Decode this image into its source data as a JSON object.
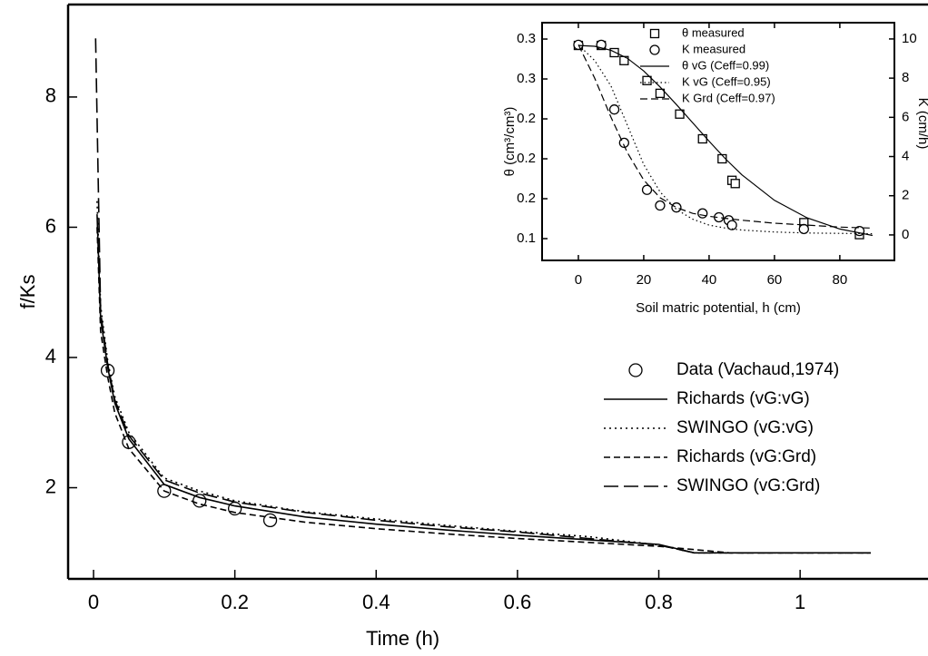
{
  "chart_data": [
    {
      "type": "line",
      "xlabel": "Time (h)",
      "ylabel": "f/Ks",
      "xlim": [
        -0.036,
        1.181
      ],
      "ylim": [
        0.6,
        9.42
      ],
      "xticks": [
        0,
        0.2,
        0.4,
        0.6,
        0.8,
        1
      ],
      "yticks": [
        2,
        4,
        6,
        8
      ],
      "legend": "lower right",
      "series": [
        {
          "name": "Data (Vachaud,1974)",
          "color": "#000000",
          "marker": "circle",
          "x": [
            0.02,
            0.05,
            0.1,
            0.15,
            0.2,
            0.25
          ],
          "values": [
            3.8,
            2.7,
            1.95,
            1.8,
            1.68,
            1.5
          ]
        },
        {
          "name": "Richards (vG:vG)",
          "color": "#000000",
          "style": "solid",
          "x": [
            0.005,
            0.01,
            0.02,
            0.03,
            0.05,
            0.1,
            0.15,
            0.2,
            0.3,
            0.4,
            0.5,
            0.6,
            0.7,
            0.8,
            0.85,
            0.9,
            1.0,
            1.1
          ],
          "values": [
            6.2,
            4.6,
            3.85,
            3.3,
            2.75,
            2.05,
            1.85,
            1.72,
            1.55,
            1.44,
            1.35,
            1.27,
            1.2,
            1.13,
            1.0,
            1.0,
            1.0,
            1.0
          ]
        },
        {
          "name": "SWINGO (vG:vG)",
          "color": "#000000",
          "style": "dotted",
          "x": [
            0.005,
            0.01,
            0.02,
            0.03,
            0.05,
            0.1,
            0.15,
            0.2,
            0.3,
            0.4,
            0.5,
            0.6,
            0.7,
            0.8,
            0.85,
            0.9,
            1.0,
            1.1
          ],
          "values": [
            6.4,
            4.8,
            3.95,
            3.4,
            2.85,
            2.15,
            1.95,
            1.8,
            1.63,
            1.52,
            1.42,
            1.33,
            1.25,
            1.12,
            1.0,
            1.0,
            1.0,
            1.0
          ]
        },
        {
          "name": "Richards (vG:Grd)",
          "color": "#000000",
          "style": "dashed",
          "x": [
            0.005,
            0.01,
            0.02,
            0.03,
            0.05,
            0.1,
            0.15,
            0.2,
            0.3,
            0.4,
            0.5,
            0.6,
            0.7,
            0.8,
            0.85,
            0.9,
            1.0,
            1.1
          ],
          "values": [
            6.0,
            4.4,
            3.7,
            3.15,
            2.6,
            1.95,
            1.75,
            1.62,
            1.47,
            1.37,
            1.29,
            1.22,
            1.16,
            1.1,
            1.05,
            1.0,
            1.0,
            1.0
          ]
        },
        {
          "name": "SWINGO (vG:Grd)",
          "color": "#000000",
          "style": "longdash",
          "x": [
            0.003,
            0.01,
            0.02,
            0.03,
            0.05,
            0.1,
            0.15,
            0.2,
            0.3,
            0.4,
            0.5,
            0.6,
            0.7,
            0.8,
            0.85,
            0.9,
            1.0,
            1.1
          ],
          "values": [
            8.9,
            4.7,
            3.9,
            3.35,
            2.8,
            2.12,
            1.92,
            1.78,
            1.62,
            1.5,
            1.4,
            1.32,
            1.22,
            1.12,
            1.0,
            1.0,
            1.0,
            1.0
          ]
        }
      ]
    },
    {
      "type": "line",
      "xlabel": "Soil matric potential, h (cm)",
      "ylabel": "θ (cm³/cm³)",
      "y2label": "K (cm/h)",
      "xlim": [
        -11.1,
        96.7
      ],
      "ylim": [
        0.0727,
        0.3705
      ],
      "y2lim": [
        -1.3,
        10.83
      ],
      "xticks": [
        0,
        20,
        40,
        60,
        80
      ],
      "yticks": [
        {
          "value": 0.35,
          "label": "0.3"
        },
        {
          "value": 0.3,
          "label": "0.3"
        },
        {
          "value": 0.25,
          "label": "0.2"
        },
        {
          "value": 0.2,
          "label": "0.2"
        },
        {
          "value": 0.15,
          "label": "0.2"
        },
        0.1
      ],
      "y2ticks": [
        0,
        2,
        4,
        6,
        8,
        10
      ],
      "legend": "upper right",
      "series": [
        {
          "name": "θ measured",
          "color": "#000000",
          "marker": "square",
          "x": [
            0,
            7,
            11,
            14,
            21,
            25,
            31,
            38,
            44,
            47,
            48,
            69,
            86
          ],
          "values": [
            0.342,
            0.342,
            0.333,
            0.323,
            0.298,
            0.282,
            0.256,
            0.225,
            0.2,
            0.173,
            0.169,
            0.12,
            0.105
          ]
        },
        {
          "name": "K measured",
          "color": "#000000",
          "marker": "circle",
          "axis": "y2",
          "x": [
            0,
            7,
            11,
            14,
            21,
            25,
            30,
            38,
            43,
            46,
            47,
            69,
            86
          ],
          "values": [
            9.7,
            9.7,
            6.4,
            4.7,
            2.3,
            1.5,
            1.4,
            1.1,
            0.9,
            0.75,
            0.5,
            0.3,
            0.2
          ]
        },
        {
          "name": "θ vG (Ceff=0.99)",
          "color": "#000000",
          "style": "solid",
          "x": [
            0,
            5,
            10,
            15,
            20,
            25,
            30,
            35,
            40,
            45,
            50,
            60,
            70,
            80,
            90
          ],
          "values": [
            0.342,
            0.341,
            0.336,
            0.326,
            0.31,
            0.29,
            0.268,
            0.245,
            0.222,
            0.2,
            0.18,
            0.148,
            0.126,
            0.112,
            0.104
          ]
        },
        {
          "name": "K vG (Ceff=0.95)",
          "color": "#000000",
          "style": "dotted",
          "axis": "y2",
          "x": [
            0,
            5,
            10,
            15,
            20,
            25,
            30,
            35,
            40,
            45,
            50,
            60,
            70,
            80,
            90
          ],
          "values": [
            9.7,
            8.9,
            7.6,
            5.6,
            3.6,
            2.2,
            1.3,
            0.8,
            0.5,
            0.35,
            0.25,
            0.15,
            0.1,
            0.08,
            0.06
          ]
        },
        {
          "name": "K Grd (Ceff=0.97)",
          "color": "#000000",
          "style": "dashed",
          "axis": "y2",
          "x": [
            0,
            5,
            10,
            15,
            20,
            25,
            30,
            35,
            40,
            45,
            50,
            60,
            70,
            80,
            90
          ],
          "values": [
            9.7,
            8.0,
            6.0,
            4.2,
            2.8,
            1.9,
            1.4,
            1.1,
            0.95,
            0.85,
            0.75,
            0.6,
            0.5,
            0.4,
            0.35
          ]
        }
      ]
    }
  ]
}
